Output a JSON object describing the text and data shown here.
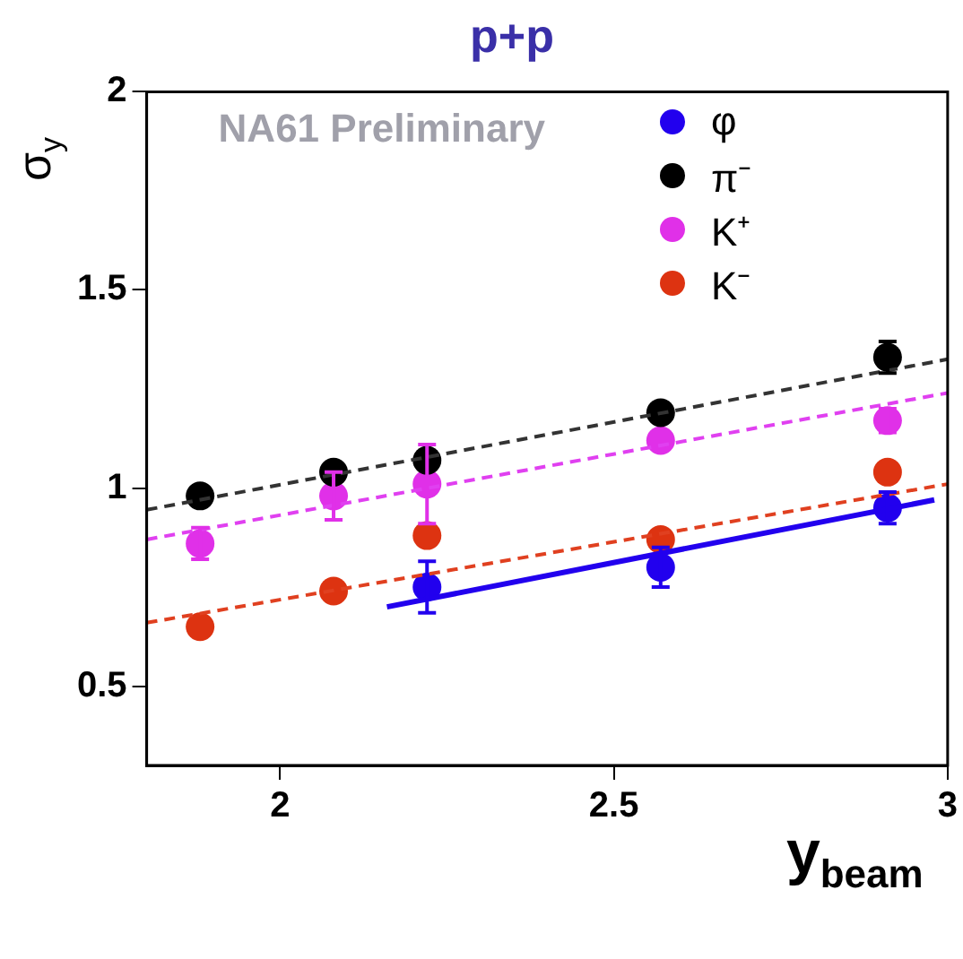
{
  "chart_data": {
    "type": "scatter",
    "title": "p+p",
    "xlabel": "y$_{beam}$",
    "ylabel": "σ$_{y}$",
    "annotations": [
      "NA61 Preliminary"
    ],
    "xlim": [
      1.8,
      3
    ],
    "xticks": [
      2,
      2.5,
      3
    ],
    "ylim": [
      0.3,
      2
    ],
    "yticks": [
      0.5,
      1,
      1.5,
      2
    ],
    "grid": false,
    "legend": "top right",
    "marker": "circle",
    "series": [
      {
        "name": "φ",
        "color": "#2200ee",
        "x": [
          2.22,
          2.57,
          2.91
        ],
        "values": [
          0.75,
          0.8,
          0.95
        ],
        "errors": [
          0.065,
          0.05,
          0.04
        ]
      },
      {
        "name": "π⁻",
        "color": "#000000",
        "x": [
          1.88,
          2.08,
          2.22,
          2.57,
          2.91
        ],
        "values": [
          0.98,
          1.04,
          1.07,
          1.19,
          1.33
        ],
        "errors": [
          null,
          null,
          null,
          null,
          0.04
        ]
      },
      {
        "name": "K⁺",
        "color": "#e030e8",
        "x": [
          1.88,
          2.08,
          2.22,
          2.57,
          2.91
        ],
        "values": [
          0.86,
          0.98,
          1.01,
          1.12,
          1.17
        ],
        "errors": [
          0.04,
          0.06,
          0.1,
          null,
          0.03
        ]
      },
      {
        "name": "K⁻",
        "color": "#dd3311",
        "x": [
          1.88,
          2.08,
          2.22,
          2.57,
          2.91
        ],
        "values": [
          0.65,
          0.74,
          0.88,
          0.87,
          1.04
        ]
      },
      {
        "type": "line",
        "color": "#2200ee",
        "line_style": "solid",
        "marker": "none",
        "x": [
          2.16,
          2.98
        ],
        "values": [
          0.7,
          0.97
        ]
      },
      {
        "type": "line",
        "color": "#333333",
        "line_style": "dashed",
        "marker": "none",
        "x": [
          1.8,
          3
        ],
        "values": [
          0.945,
          1.325
        ]
      },
      {
        "type": "line",
        "color": "#e040f0",
        "line_style": "dashed",
        "marker": "none",
        "x": [
          1.8,
          3
        ],
        "values": [
          0.87,
          1.24
        ]
      },
      {
        "type": "line",
        "color": "#e04020",
        "line_style": "dashed",
        "marker": "none",
        "x": [
          1.8,
          3
        ],
        "values": [
          0.66,
          1.01
        ]
      }
    ]
  }
}
